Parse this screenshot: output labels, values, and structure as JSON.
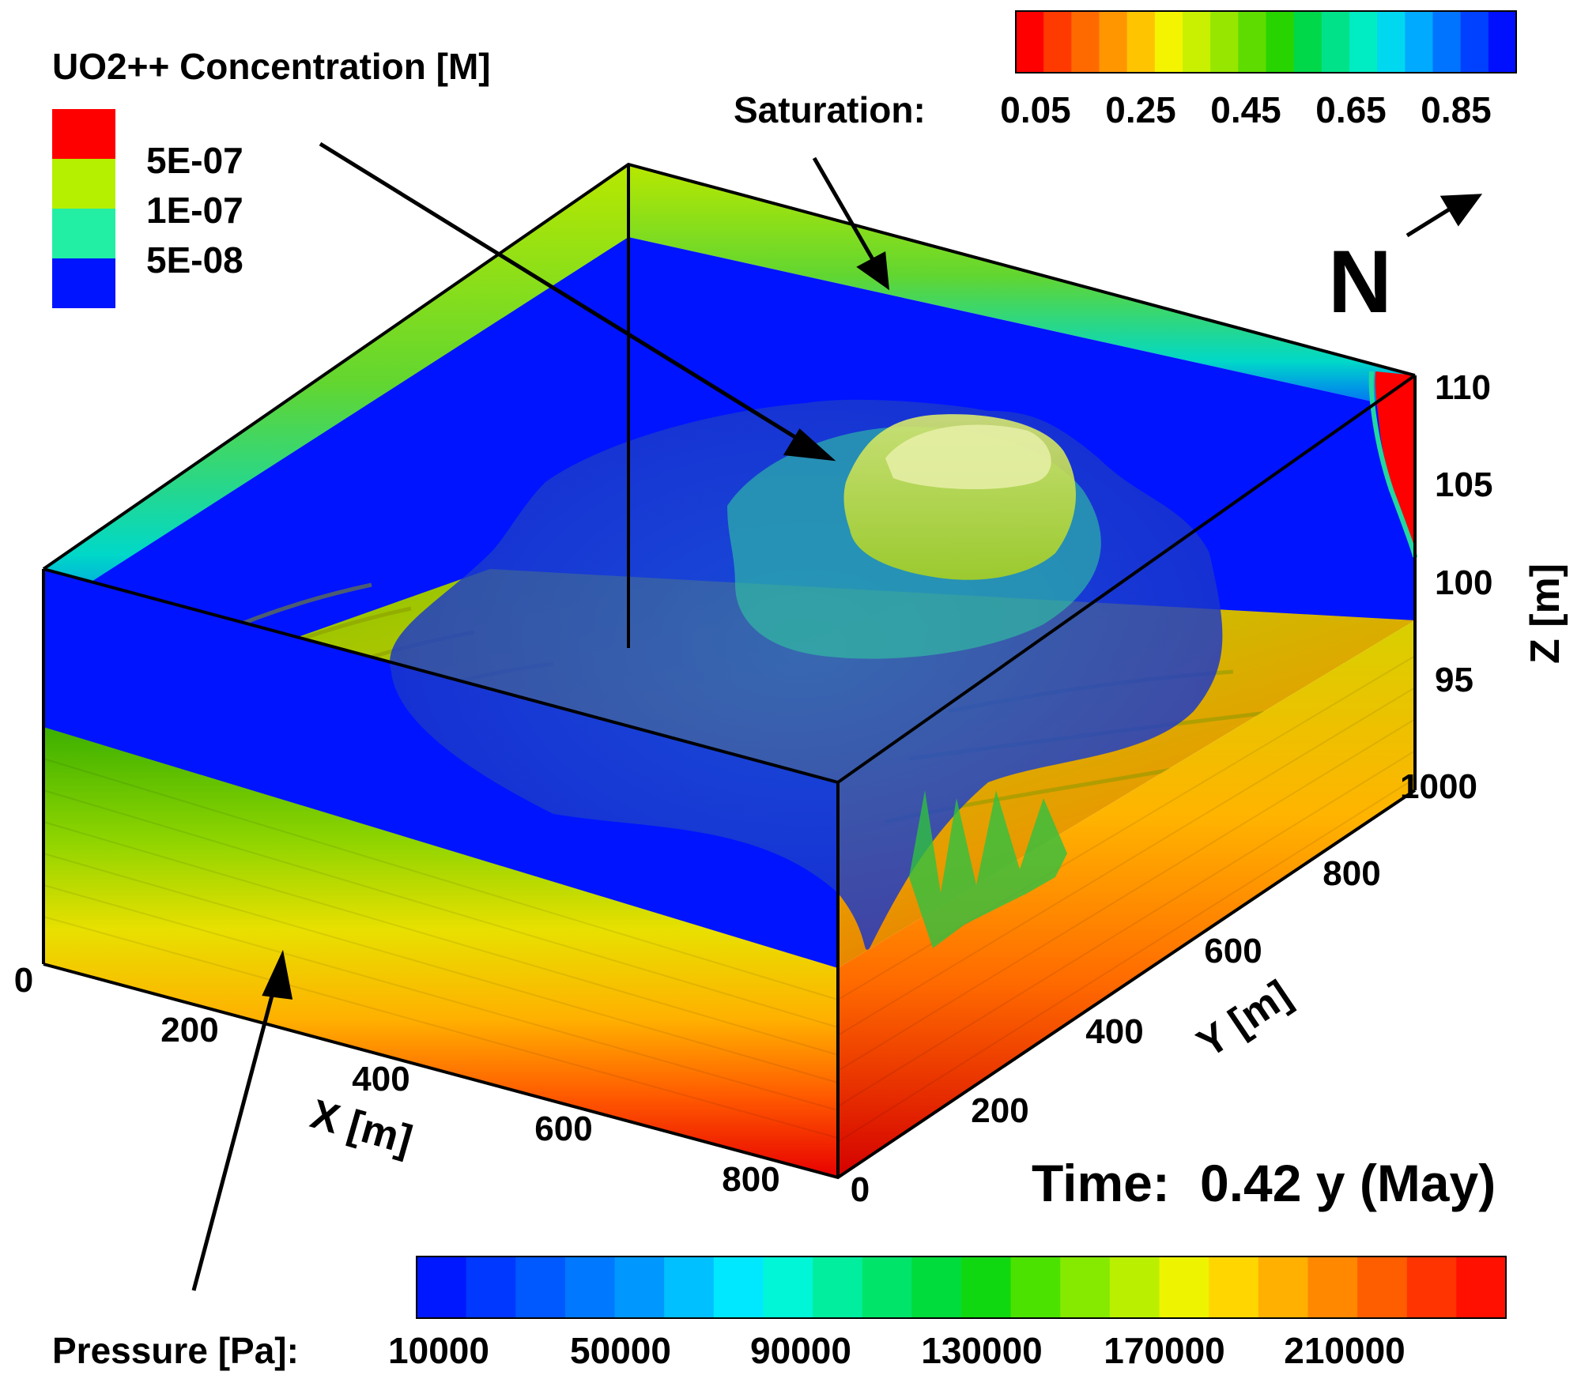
{
  "concentration_legend": {
    "title": "UO2++ Concentration [M]",
    "entries": [
      {
        "label": "5E-07",
        "color": "#ff0000"
      },
      {
        "label": "5E-07",
        "color": "#b4f000"
      },
      {
        "label": "1E-07",
        "color": "#22eea4"
      },
      {
        "label": "5E-08",
        "color": "#0014ff"
      }
    ]
  },
  "saturation_legend": {
    "label": "Saturation:",
    "ticks": [
      "0.05",
      "0.25",
      "0.45",
      "0.65",
      "0.85"
    ],
    "colors": [
      "#ff0000",
      "#ff3a00",
      "#ff6a00",
      "#ff9600",
      "#ffc400",
      "#f4f400",
      "#c8f000",
      "#96e600",
      "#5edc00",
      "#28d400",
      "#00d84a",
      "#00e28a",
      "#00ecc2",
      "#00d8f0",
      "#00aaff",
      "#0074ff",
      "#0040ff",
      "#0010ff"
    ]
  },
  "pressure_legend": {
    "label": "Pressure [Pa]:",
    "ticks": [
      "10000",
      "50000",
      "90000",
      "130000",
      "170000",
      "210000"
    ],
    "colors": [
      "#0018ff",
      "#0038ff",
      "#0058ff",
      "#0078ff",
      "#0098ff",
      "#00c0ff",
      "#00e8ff",
      "#00f6d6",
      "#00ee9e",
      "#00e46a",
      "#00dc3c",
      "#10d810",
      "#4ce200",
      "#86ea00",
      "#baf000",
      "#eef400",
      "#ffd600",
      "#ffb000",
      "#ff8800",
      "#ff5e00",
      "#ff3400",
      "#ff1000"
    ]
  },
  "north_label": "N",
  "time_label": "Time:",
  "time_value": "0.42 y (May)",
  "axes": {
    "x": {
      "label": "X [m]",
      "ticks": [
        "0",
        "200",
        "400",
        "600",
        "800"
      ]
    },
    "y": {
      "label": "Y [m]",
      "ticks": [
        "0",
        "200",
        "400",
        "600",
        "800",
        "1000"
      ]
    },
    "z": {
      "label": "Z [m]",
      "ticks": [
        "95",
        "100",
        "105",
        "110"
      ]
    }
  }
}
